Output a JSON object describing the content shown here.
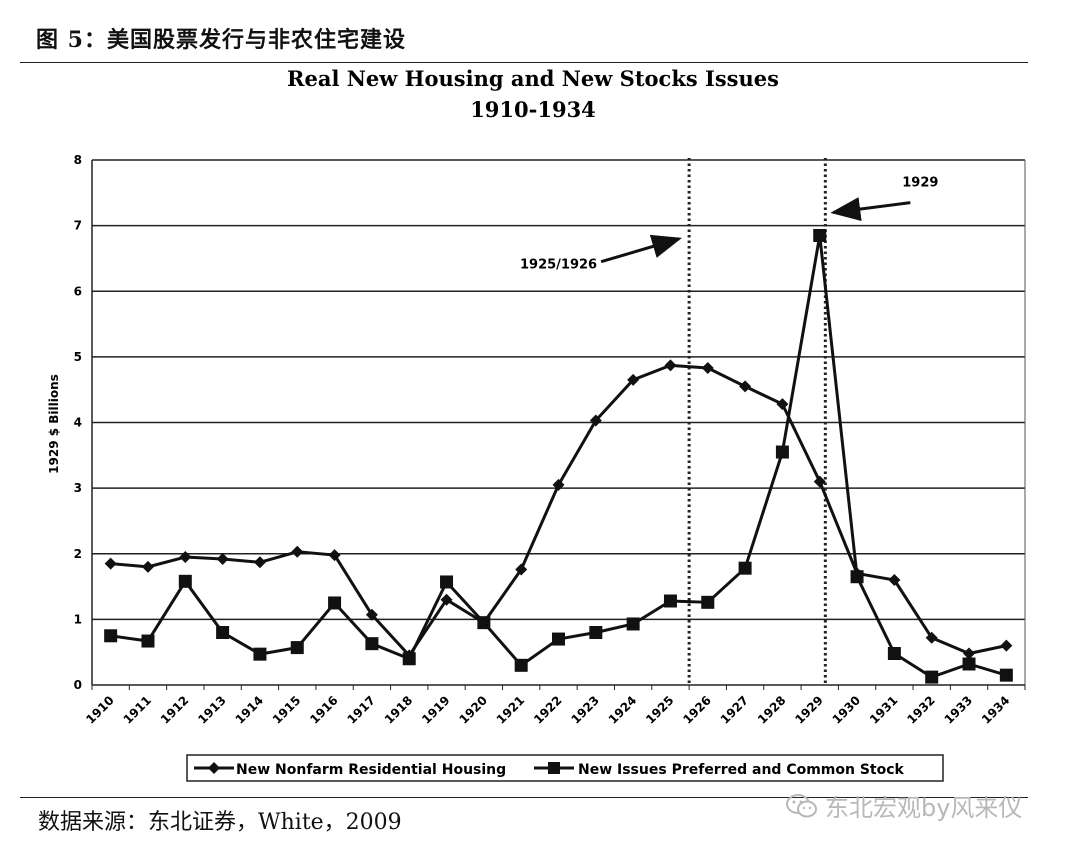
{
  "figure_caption": "图 5：美国股票发行与非农住宅建设",
  "source_note": "数据来源：东北证券，White，2009",
  "watermark": "东北宏观by风来仪",
  "watermark_icon": "wechat-icon",
  "chart_data": {
    "type": "line",
    "title": "Real New Housing and New Stocks Issues",
    "subtitle": "1910-1934",
    "ylabel": "1929 $ Billions",
    "xlabel": "",
    "ylim": [
      0,
      8
    ],
    "yticks": [
      "0",
      "1",
      "2",
      "3",
      "4",
      "5",
      "6",
      "7",
      "8"
    ],
    "categories": [
      "1910",
      "1911",
      "1912",
      "1913",
      "1914",
      "1915",
      "1916",
      "1917",
      "1918",
      "1919",
      "1920",
      "1921",
      "1922",
      "1923",
      "1924",
      "1925",
      "1926",
      "1927",
      "1928",
      "1929",
      "1930",
      "1931",
      "1932",
      "1933",
      "1934"
    ],
    "grid": true,
    "legend_position": "bottom",
    "series": [
      {
        "name": "New Nonfarm Residential Housing",
        "marker": "diamond",
        "color": "#111111",
        "values": [
          1.85,
          1.8,
          1.95,
          1.92,
          1.87,
          2.03,
          1.98,
          1.07,
          0.45,
          1.3,
          0.95,
          1.76,
          3.05,
          4.03,
          4.65,
          4.87,
          4.83,
          4.55,
          4.28,
          3.1,
          1.7,
          1.6,
          0.72,
          0.48,
          0.6
        ]
      },
      {
        "name": "New Issues Preferred and Common Stock",
        "marker": "square",
        "color": "#111111",
        "values": [
          0.75,
          0.67,
          1.58,
          0.8,
          0.47,
          0.57,
          1.25,
          0.63,
          0.4,
          1.57,
          0.95,
          0.3,
          0.7,
          0.8,
          0.93,
          1.28,
          1.26,
          1.78,
          3.55,
          6.85,
          1.65,
          0.48,
          0.12,
          0.32,
          0.15
        ]
      }
    ],
    "reference_lines": [
      {
        "between": [
          "1925",
          "1926"
        ],
        "label": "1925/1926"
      },
      {
        "between": [
          "1929",
          "1929"
        ],
        "label": "1929"
      }
    ]
  }
}
